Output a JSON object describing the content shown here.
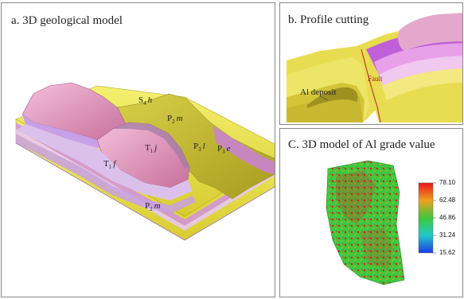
{
  "panel_a": {
    "title": "a. 3D geological model",
    "labels": {
      "s4h": {
        "main": "S",
        "sub": "4",
        "tail": "h"
      },
      "p2m_top": {
        "main": "P",
        "sub": "2",
        "tail": "m"
      },
      "t1j": {
        "main": "T",
        "sub": "1",
        "tail": "j"
      },
      "p3l": {
        "main": "P",
        "sub": "3",
        "tail": "l"
      },
      "p3e": {
        "main": "P",
        "sub": "3",
        "tail": "e"
      },
      "t1f": {
        "main": "T",
        "sub": "1",
        "tail": "f"
      },
      "p2m_front": {
        "main": "P",
        "sub": "2",
        "tail": "m"
      }
    }
  },
  "panel_b": {
    "title": "b. Profile cutting",
    "al_deposit": "Al deposit",
    "fault": "Fault"
  },
  "panel_c": {
    "title": "C. 3D model of  Al grade value",
    "colorbar": [
      "78.10",
      "62.48",
      "46.86",
      "31.24",
      "15.62"
    ],
    "colorbar_colors": [
      "#e8141c",
      "#f0a020",
      "#3ec83a",
      "#22c8c8",
      "#1a3ce8"
    ]
  },
  "colors": {
    "pink": "#e8a0c8",
    "lavender": "#c8a0e8",
    "yellow": "#e8e050",
    "olive": "#b8b028",
    "purple_band": "#c060d8"
  }
}
